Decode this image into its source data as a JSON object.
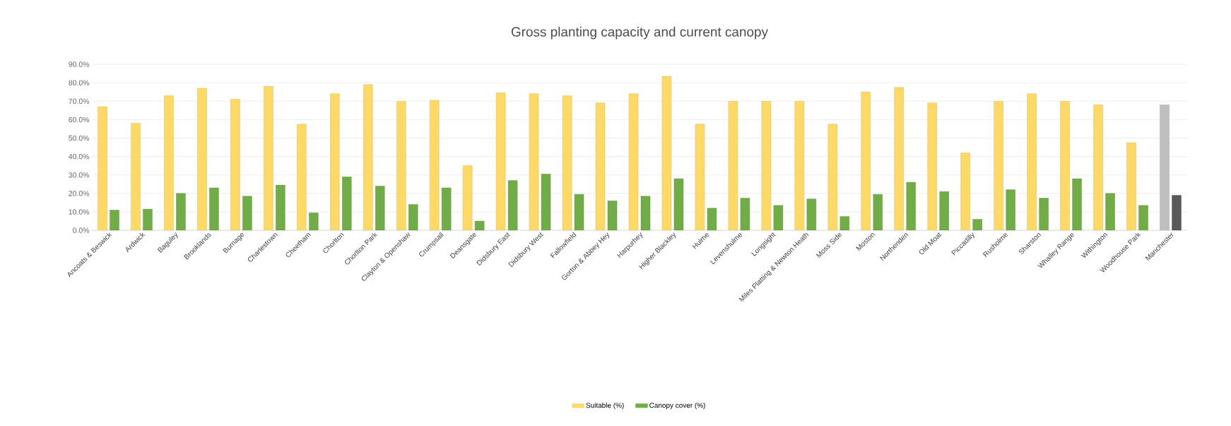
{
  "chart_data": {
    "type": "bar",
    "title": "Gross planting capacity and current canopy",
    "categories": [
      "Ancoats & Beswick",
      "Ardwick",
      "Baguley",
      "Brooklands",
      "Burnage",
      "Charlestown",
      "Cheetham",
      "Chorlton",
      "Chorlton Park",
      "Clayton & Openshaw",
      "Crumpsall",
      "Deansgate",
      "Didsbury East",
      "Didsbury West",
      "Fallowfield",
      "Gorton & Abbey Hey",
      "Harpurhey",
      "Higher Blackley",
      "Hulme",
      "Levenshulme",
      "Longsight",
      "Miles Platting & Newton Heath",
      "Moss Side",
      "Moston",
      "Northenden",
      "Old Moat",
      "Piccadilly",
      "Rusholme",
      "Sharston",
      "Whalley Range",
      "Withington",
      "Woodhouse Park",
      "Manchester"
    ],
    "series": [
      {
        "name": "Suitable (%)",
        "color": "#ffd966",
        "values": [
          67,
          58,
          73,
          77,
          71,
          78,
          57.5,
          74,
          79,
          70,
          70.5,
          35,
          74.5,
          74,
          73,
          69,
          74,
          83.5,
          57.5,
          70,
          70,
          70,
          57.5,
          75,
          77.5,
          69,
          42,
          70,
          74,
          70,
          68,
          47.5,
          68
        ],
        "colors": [
          "#ffd966",
          "#ffd966",
          "#ffd966",
          "#ffd966",
          "#ffd966",
          "#ffd966",
          "#ffd966",
          "#ffd966",
          "#ffd966",
          "#ffd966",
          "#ffd966",
          "#ffd966",
          "#ffd966",
          "#ffd966",
          "#ffd966",
          "#ffd966",
          "#ffd966",
          "#ffd966",
          "#ffd966",
          "#ffd966",
          "#ffd966",
          "#ffd966",
          "#ffd966",
          "#ffd966",
          "#ffd966",
          "#ffd966",
          "#ffd966",
          "#ffd966",
          "#ffd966",
          "#ffd966",
          "#ffd966",
          "#ffd966",
          "#bfbfbf"
        ]
      },
      {
        "name": "Canopy cover (%)",
        "color": "#70ad47",
        "values": [
          11,
          11.5,
          20,
          23,
          18.5,
          24.5,
          9.5,
          29,
          24,
          14,
          23,
          5,
          27,
          30.5,
          19.5,
          16,
          18.5,
          28,
          12,
          17.5,
          13.5,
          17,
          7.5,
          19.5,
          26,
          21,
          6,
          22,
          17.5,
          28,
          20,
          13.5,
          19
        ],
        "colors": [
          "#70ad47",
          "#70ad47",
          "#70ad47",
          "#70ad47",
          "#70ad47",
          "#70ad47",
          "#70ad47",
          "#70ad47",
          "#70ad47",
          "#70ad47",
          "#70ad47",
          "#70ad47",
          "#70ad47",
          "#70ad47",
          "#70ad47",
          "#70ad47",
          "#70ad47",
          "#70ad47",
          "#70ad47",
          "#70ad47",
          "#70ad47",
          "#70ad47",
          "#70ad47",
          "#70ad47",
          "#70ad47",
          "#70ad47",
          "#70ad47",
          "#70ad47",
          "#70ad47",
          "#70ad47",
          "#70ad47",
          "#70ad47",
          "#595959"
        ]
      }
    ],
    "ylim": [
      0,
      90
    ],
    "yticks": [
      {
        "value": 0,
        "label": "0.0%"
      },
      {
        "value": 10,
        "label": "10.0%"
      },
      {
        "value": 20,
        "label": "20.0%"
      },
      {
        "value": 30,
        "label": "30.0%"
      },
      {
        "value": 40,
        "label": "40.0%"
      },
      {
        "value": 50,
        "label": "50.0%"
      },
      {
        "value": 60,
        "label": "60.0%"
      },
      {
        "value": 70,
        "label": "70.0%"
      },
      {
        "value": 80,
        "label": "80.0%"
      },
      {
        "value": 90,
        "label": "90.0%"
      }
    ],
    "grid": "y",
    "legend": "bottom"
  }
}
